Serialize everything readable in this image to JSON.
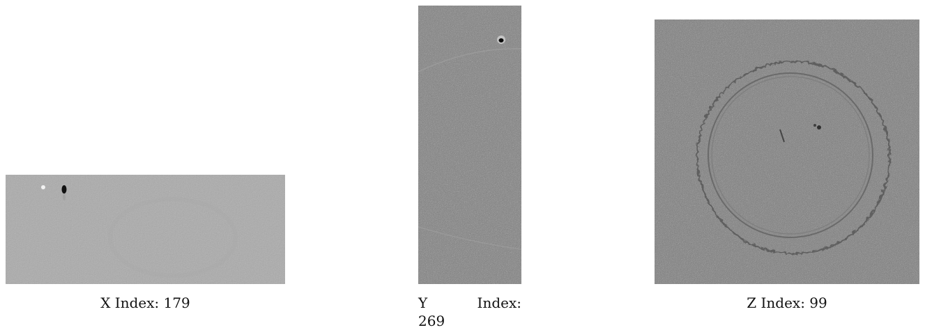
{
  "panels": [
    {
      "id": "x",
      "caption": "X Index: 179",
      "caption_line1": "",
      "caption_line2": ""
    },
    {
      "id": "y",
      "caption": "",
      "caption_line1": "Y Index:",
      "caption_line2": "269"
    },
    {
      "id": "z",
      "caption": "Z Index: 99"
    }
  ],
  "colors": {
    "x_slice_background": "#bfbfbf",
    "y_slice_background": "#8c8c8c",
    "z_slice_background": "#8a8a8a"
  }
}
